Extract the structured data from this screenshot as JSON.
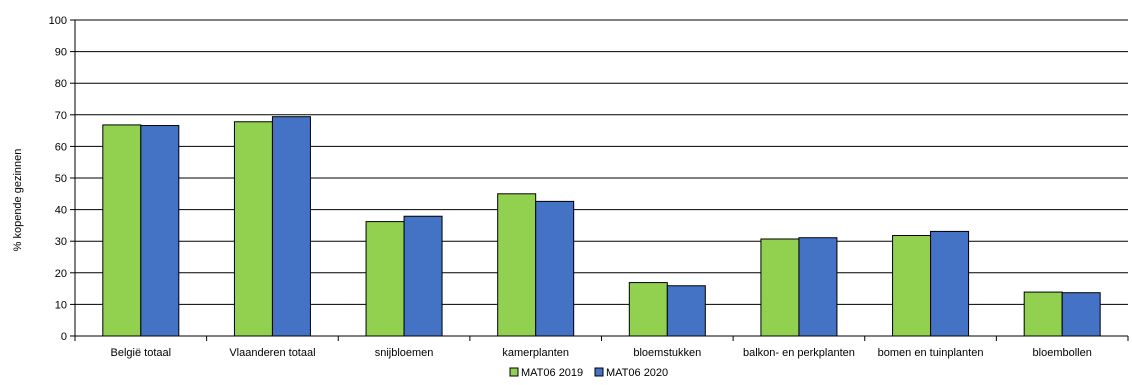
{
  "chart_data": {
    "type": "bar",
    "title": "",
    "xlabel": "",
    "ylabel": "% kopende gezinnen",
    "ylim": [
      0,
      100
    ],
    "yticks": [
      0,
      10,
      20,
      30,
      40,
      50,
      60,
      70,
      80,
      90,
      100
    ],
    "grid": true,
    "legend_position": "bottom",
    "categories": [
      "België totaal",
      "Vlaanderen totaal",
      "snijbloemen",
      "kamerplanten",
      "bloemstukken",
      "balkon- en perkplanten",
      "bomen en tuinplanten",
      "bloembollen"
    ],
    "series": [
      {
        "name": "MAT06 2019",
        "color": "#92d050",
        "values": [
          66.8,
          67.8,
          36.2,
          45.0,
          16.9,
          30.7,
          31.8,
          13.9
        ]
      },
      {
        "name": "MAT06 2020",
        "color": "#4472c4",
        "values": [
          66.6,
          69.4,
          37.9,
          42.6,
          15.9,
          31.1,
          33.1,
          13.7
        ]
      }
    ]
  }
}
